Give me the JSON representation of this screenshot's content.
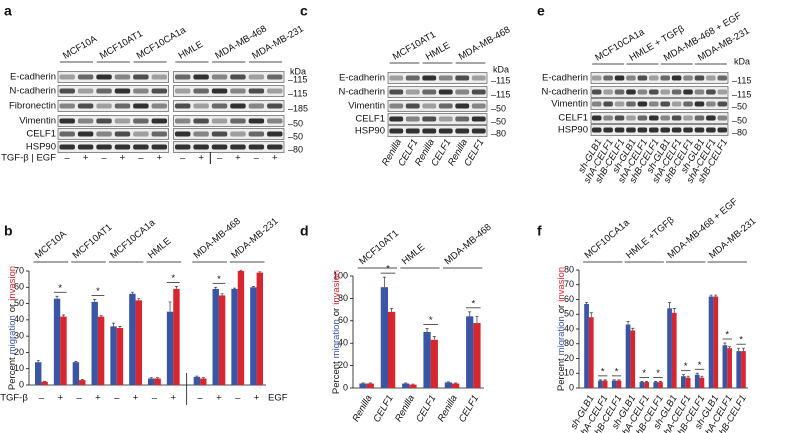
{
  "blots": [
    {
      "letter": "a",
      "groups": [
        "MCF10A",
        "MCF10AT1",
        "MCF10CA1a",
        "HMLE",
        "MDA-MB-468",
        "MDA-MB-231"
      ],
      "rows": [
        "E-cadherin",
        "N-cadherin",
        "Fibronectin",
        "Vimentin",
        "CELF1",
        "HSP90"
      ],
      "kda_unit": "kDa",
      "markers": [
        "–115",
        "–115",
        "–185",
        "–50",
        "–50",
        "–80"
      ],
      "lane_label": "TGF-β | EGF",
      "lanes": [
        "–",
        "+",
        "–",
        "+",
        "–",
        "+",
        "–",
        "+",
        "–",
        "+",
        "–",
        "+"
      ]
    },
    {
      "letter": "c",
      "groups": [
        "MCF10AT1",
        "HMLE",
        "MDA-MB-468"
      ],
      "rows": [
        "E-cadherin",
        "N-cadherin",
        "Vimentin",
        "CELF1",
        "HSP90"
      ],
      "kda_unit": "kDa",
      "markers": [
        "–115",
        "–115",
        "–50",
        "–50",
        "–80"
      ],
      "lanes": [
        "Renilla",
        "CELF1",
        "Renilla",
        "CELF1",
        "Renilla",
        "CELF1"
      ]
    },
    {
      "letter": "e",
      "groups": [
        "MCF10CA1a",
        "HMLE + TGFβ",
        "MDA-MB-468 + EGF",
        "MDA-MB-231"
      ],
      "rows": [
        "E-cadherin",
        "N-cadherin",
        "Vimentin",
        "CELF1",
        "HSP90"
      ],
      "kda_unit": "kDa",
      "markers": [
        "–115",
        "–115",
        "–50",
        "–50",
        "–80"
      ],
      "lanes": [
        "sh-GLB1",
        "shA-CELF1",
        "shB-CELF1",
        "sh-GLB1",
        "shA-CELF1",
        "shB-CELF1",
        "sh-GLB1",
        "shA-CELF1",
        "shB-CELF1",
        "sh-GLB1",
        "shA-CELF1",
        "shB-CELF1"
      ]
    }
  ],
  "chart_data": [
    {
      "type": "bar",
      "letter": "b",
      "ylabel_prefix": "Percent",
      "ylabel_join": "or",
      "groups": [
        "MCF10A",
        "MCF10AT1",
        "MCF10CA1a",
        "HMLE",
        "MDA-MB-468",
        "MDA-MB-231"
      ],
      "categories": [
        "–",
        "+",
        "–",
        "+",
        "–",
        "+",
        "–",
        "+",
        "–",
        "+",
        "–",
        "+"
      ],
      "treatment_left": "TGF-β",
      "treatment_right": "EGF",
      "series": [
        {
          "name": "migration",
          "color": "#3b55a5",
          "values": [
            14,
            53,
            14,
            51,
            36,
            56,
            4,
            45,
            5,
            59,
            59,
            60
          ],
          "errors": [
            1,
            1.5,
            0.5,
            1.5,
            2,
            1,
            0.5,
            6,
            0.5,
            1,
            0.5,
            0.5
          ]
        },
        {
          "name": "invasion",
          "color": "#d7262e",
          "values": [
            2,
            42,
            3,
            42,
            35,
            52,
            4,
            59,
            4,
            55,
            70,
            69
          ],
          "errors": [
            0.3,
            1,
            0.5,
            0.5,
            1,
            1,
            0.5,
            1.5,
            0.5,
            1,
            0.5,
            0.5
          ]
        }
      ],
      "annotations": [
        null,
        "*",
        null,
        "*",
        null,
        null,
        null,
        "*",
        null,
        "*",
        null,
        null
      ],
      "ylim": [
        0,
        70
      ],
      "yticks": [
        0,
        10,
        20,
        30,
        40,
        50,
        60,
        70
      ]
    },
    {
      "type": "bar",
      "letter": "d",
      "ylabel_prefix": "Percent",
      "ylabel_join": "or",
      "groups": [
        "MCF10AT1",
        "HMLE",
        "MDA-MB-468"
      ],
      "categories": [
        "Renilla",
        "CELF1",
        "Renilla",
        "CELF1",
        "Renilla",
        "CELF1"
      ],
      "series": [
        {
          "name": "migration",
          "color": "#3b55a5",
          "values": [
            4,
            90,
            4,
            50,
            5,
            64
          ],
          "errors": [
            0.5,
            9,
            0.5,
            3,
            0.5,
            4
          ]
        },
        {
          "name": "invasion",
          "color": "#d7262e",
          "values": [
            4,
            68,
            3,
            43,
            4,
            58
          ],
          "errors": [
            0.5,
            3,
            0.5,
            3,
            0.5,
            6
          ]
        }
      ],
      "annotations": [
        null,
        "*",
        null,
        "*",
        null,
        "*"
      ],
      "ylim": [
        0,
        100
      ],
      "yticks": [
        0,
        20,
        40,
        60,
        80,
        100
      ]
    },
    {
      "type": "bar",
      "letter": "f",
      "ylabel_prefix": "Percent",
      "ylabel_join": "or",
      "groups": [
        "MCF10CA1a",
        "HMLE +TGFβ",
        "MDA-MB-468 + EGF",
        "MDA-MB-231"
      ],
      "categories": [
        "sh-GLB1",
        "shA-CELF1",
        "shB-CELF1",
        "sh-GLB1",
        "shA-CELF1",
        "shB-CELF1",
        "sh-GLB1",
        "shA-CELF1",
        "shB-CELF1",
        "sh-GLB1",
        "shA-CELF1",
        "shB-CELF1"
      ],
      "series": [
        {
          "name": "migration",
          "color": "#3b55a5",
          "values": [
            57,
            5,
            5,
            43,
            4,
            4,
            54,
            8,
            9,
            62,
            29,
            25
          ],
          "errors": [
            1,
            0.5,
            0.5,
            2,
            0.5,
            0.5,
            4,
            1,
            1,
            1,
            1.5,
            2
          ]
        },
        {
          "name": "invasion",
          "color": "#d7262e",
          "values": [
            48,
            5,
            5,
            39,
            4,
            4,
            51,
            7,
            7,
            62,
            27,
            25
          ],
          "errors": [
            3,
            0.5,
            0.5,
            1.5,
            0.5,
            0.5,
            3,
            1,
            1,
            1,
            1,
            2
          ]
        }
      ],
      "annotations": [
        null,
        "*",
        "*",
        null,
        "*",
        "*",
        null,
        "*",
        "*",
        null,
        "*",
        "*"
      ],
      "ylim": [
        0,
        80
      ],
      "yticks": [
        0,
        10,
        20,
        30,
        40,
        50,
        60,
        70,
        80
      ]
    }
  ]
}
